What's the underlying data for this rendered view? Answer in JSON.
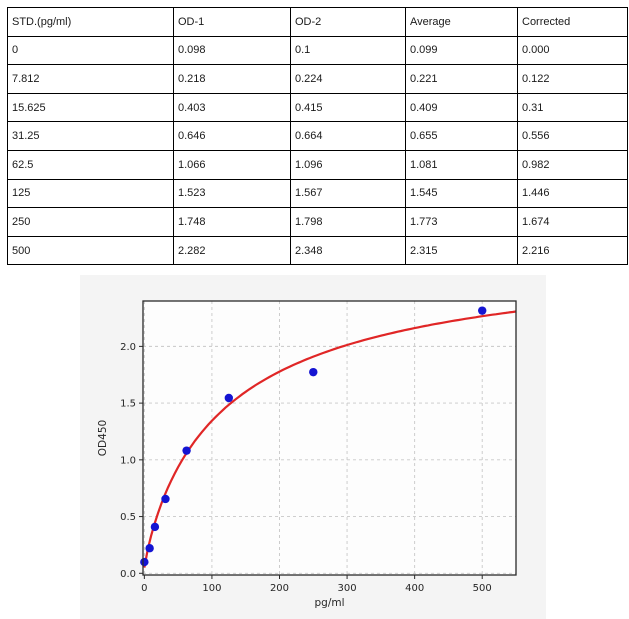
{
  "table": {
    "headers": [
      "STD.(pg/ml)",
      "OD-1",
      "OD-2",
      "Average",
      "Corrected"
    ],
    "rows": [
      [
        "0",
        "0.098",
        "0.1",
        "0.099",
        "0.000"
      ],
      [
        "7.812",
        "0.218",
        "0.224",
        "0.221",
        "0.122"
      ],
      [
        "15.625",
        "0.403",
        "0.415",
        "0.409",
        "0.31"
      ],
      [
        "31.25",
        "0.646",
        "0.664",
        "0.655",
        "0.556"
      ],
      [
        "62.5",
        "1.066",
        "1.096",
        "1.081",
        "0.982"
      ],
      [
        "125",
        "1.523",
        "1.567",
        "1.545",
        "1.446"
      ],
      [
        "250",
        "1.748",
        "1.798",
        "1.773",
        "1.674"
      ],
      [
        "500",
        "2.282",
        "2.348",
        "2.315",
        "2.216"
      ]
    ]
  },
  "chart_data": {
    "type": "scatter",
    "title": "",
    "xlabel": "pg/ml",
    "ylabel": "OD450",
    "xlim": [
      -2,
      550
    ],
    "ylim": [
      -0.015,
      2.4
    ],
    "xticks": [
      0,
      100,
      200,
      300,
      400,
      500
    ],
    "xtick_labels": [
      "0",
      "100",
      "200",
      "300",
      "400",
      "500"
    ],
    "yticks": [
      0.0,
      0.5,
      1.0,
      1.5,
      2.0
    ],
    "ytick_labels": [
      "0.0",
      "0.5",
      "1.0",
      "1.5",
      "2.0"
    ],
    "grid": true,
    "legend": "none",
    "series": [
      {
        "name": "standard-points",
        "type": "scatter",
        "color": "#1414d2",
        "x": [
          0,
          7.812,
          15.625,
          31.25,
          62.5,
          125,
          250,
          500
        ],
        "y": [
          0.099,
          0.221,
          0.409,
          0.655,
          1.081,
          1.545,
          1.773,
          2.315
        ]
      },
      {
        "name": "fit-curve",
        "type": "line",
        "color": "#e02626",
        "fit": {
          "model": "4PL: y = d + (a-d)/(1+(x/c)^b)",
          "a": 0.05,
          "b": 0.88,
          "c": 125,
          "d": 2.92
        },
        "x_range": [
          0,
          550
        ]
      }
    ]
  },
  "colors": {
    "figure_bg": "#f4f4f4",
    "plot_bg": "#fdfdfd",
    "plot_border": "#2a2a2a",
    "grid": "#c8c8c8",
    "tick_text": "#262626",
    "point": "#1414d2",
    "curve": "#e02626"
  }
}
